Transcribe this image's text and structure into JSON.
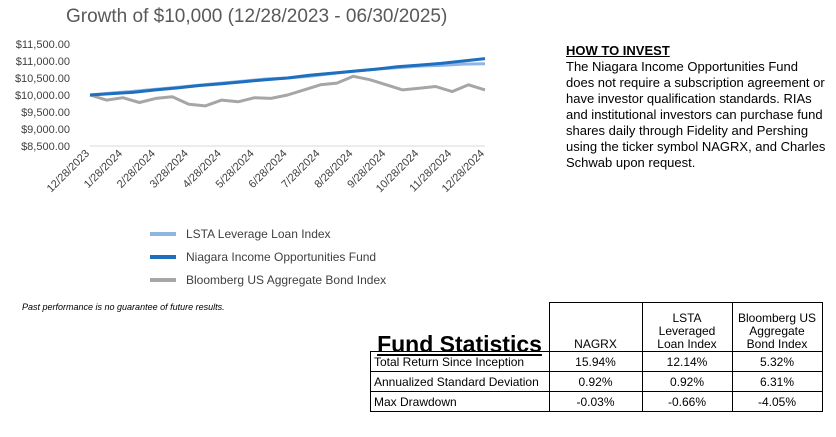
{
  "chart_data": {
    "type": "line",
    "title": "Growth of $10,000 (12/28/2023 - 06/30/2025)",
    "y_ticks": [
      "$11,500.00",
      "$11,000.00",
      "$10,500.00",
      "$10,000.00",
      "$9,500.00",
      "$9,000.00",
      "$8,500.00"
    ],
    "x_ticks": [
      "12/28/2023",
      "1/28/2024",
      "2/28/2024",
      "3/28/2024",
      "4/28/2024",
      "5/28/2024",
      "6/28/2024",
      "7/28/2024",
      "8/28/2024",
      "9/28/2024",
      "10/28/2024",
      "11/28/2024",
      "12/28/2024"
    ],
    "ylim": [
      8500,
      11500
    ],
    "grid": false,
    "legend_position": "bottom",
    "series": [
      {
        "name": "LSTA Leverage Loan Index",
        "color": "#8fb6e3",
        "values": [
          10000,
          10060,
          10110,
          10170,
          10230,
          10290,
          10350,
          10410,
          10470,
          10500,
          10550,
          10630,
          10700,
          10760,
          10800,
          10850,
          10870,
          10910,
          10920
        ]
      },
      {
        "name": "Niagara Income Opportunities Fund",
        "color": "#1f6fbf",
        "values": [
          10000,
          10040,
          10080,
          10150,
          10210,
          10280,
          10330,
          10390,
          10450,
          10500,
          10580,
          10640,
          10700,
          10760,
          10830,
          10880,
          10930,
          11000,
          11070
        ]
      },
      {
        "name": "Bloomberg US Aggregate Bond Index",
        "color": "#a6a6a6",
        "values": [
          10000,
          9850,
          9920,
          9780,
          9900,
          9950,
          9730,
          9680,
          9850,
          9800,
          9920,
          9900,
          10000,
          10150,
          10300,
          10350,
          10550,
          10450,
          10300,
          10150,
          10200,
          10250,
          10100,
          10300,
          10150
        ]
      }
    ]
  },
  "disclaimer": "Past performance is no guarantee of future results.",
  "how_to_invest": {
    "heading": "HOW TO INVEST",
    "body": "The Niagara Income Opportunities Fund does not require a subscription agreement or have investor qualification standards. RIAs and institutional investors can purchase fund shares daily through Fidelity and Pershing using the ticker symbol NAGRX, and Charles Schwab upon request."
  },
  "fund_statistics": {
    "title": "Fund Statistics",
    "columns": [
      "NAGRX",
      "LSTA Leveraged Loan Index",
      "Bloomberg US Aggregate Bond Index"
    ],
    "rows": [
      {
        "label": "Total Return Since Inception",
        "values": [
          "15.94%",
          "12.14%",
          "5.32%"
        ]
      },
      {
        "label": "Annualized Standard Deviation",
        "values": [
          "0.92%",
          "0.92%",
          "6.31%"
        ]
      },
      {
        "label": "Max Drawdown",
        "values": [
          "-0.03%",
          "-0.66%",
          "-4.05%"
        ]
      }
    ]
  }
}
